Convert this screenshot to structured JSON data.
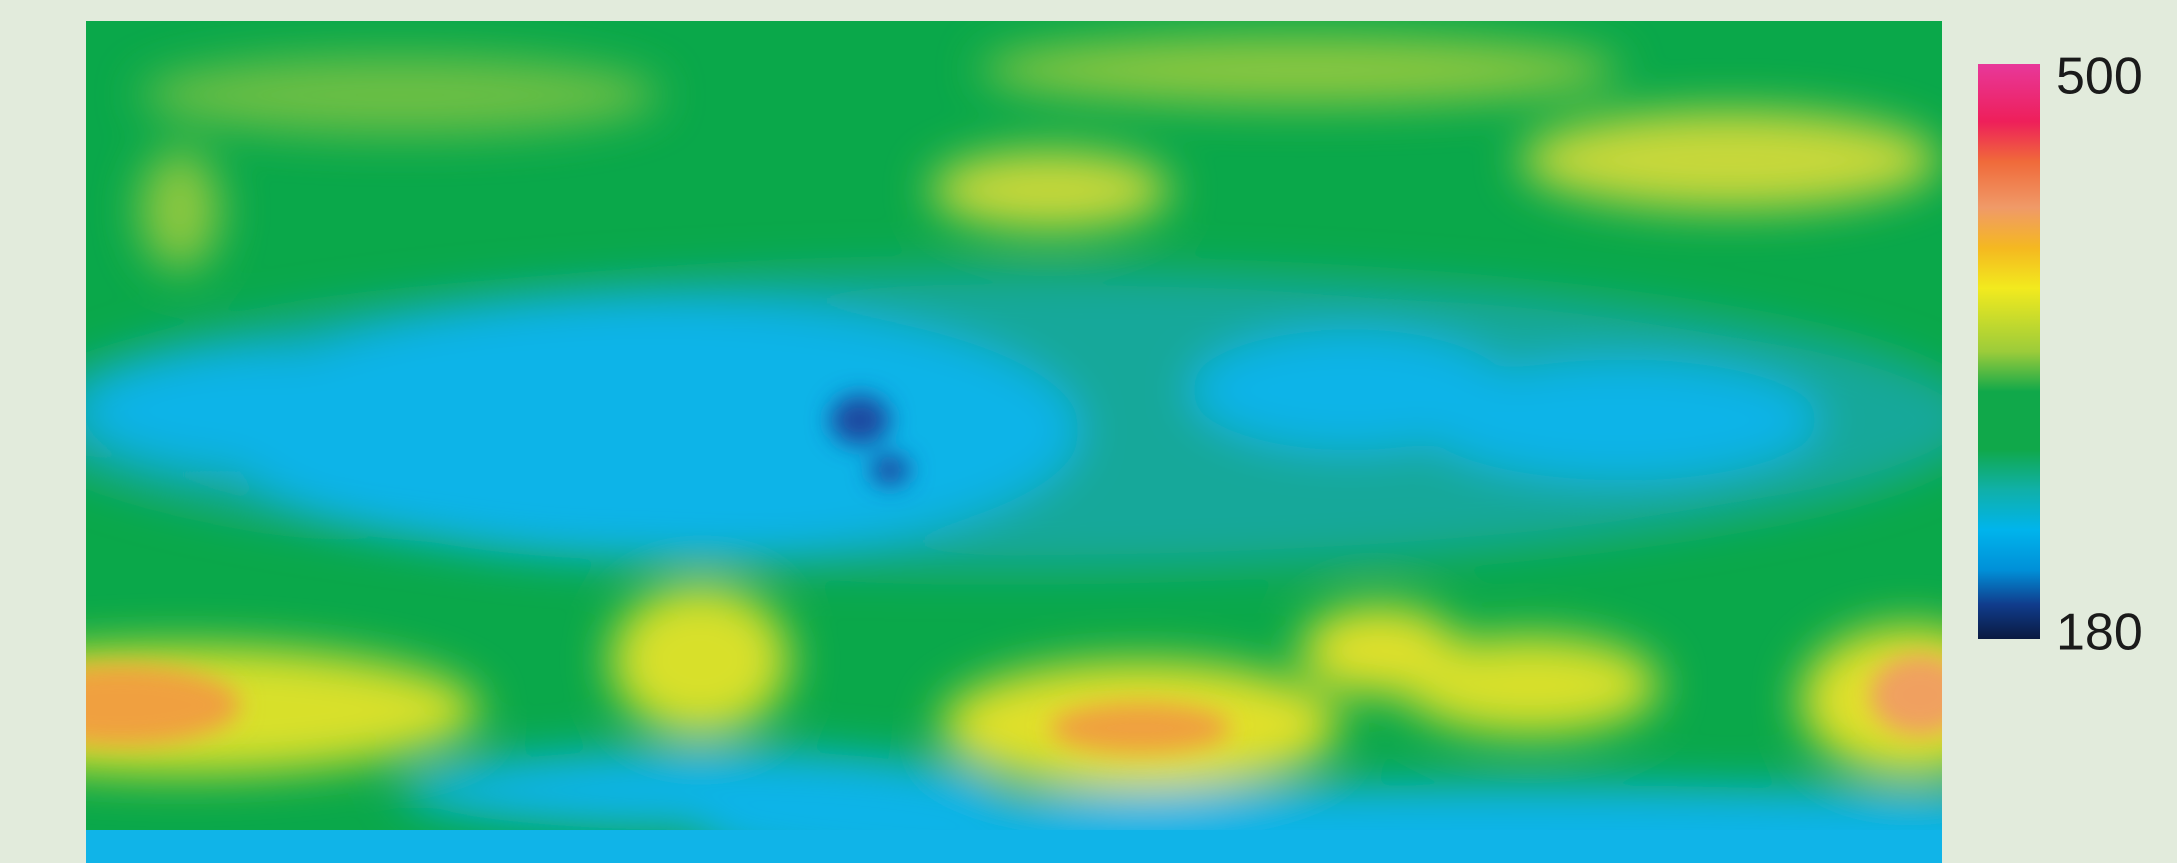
{
  "chart_data": {
    "type": "heatmap",
    "zlim": [
      180,
      500
    ],
    "zticks": [
      500,
      180
    ]
  }
}
